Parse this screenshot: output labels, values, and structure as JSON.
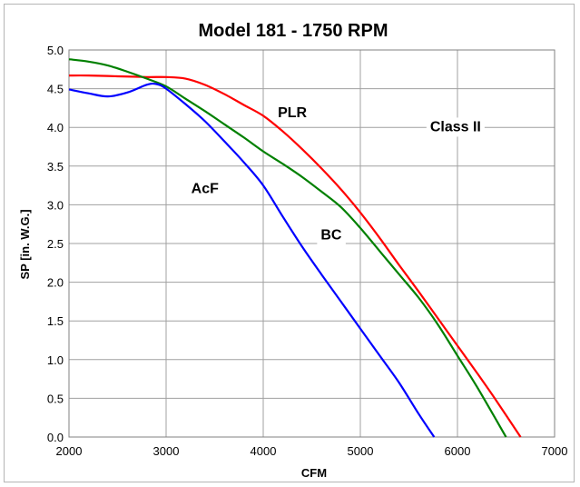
{
  "chart_data": {
    "type": "line",
    "title": "Model 181 - 1750 RPM",
    "xlabel": "CFM",
    "ylabel": "SP [in. W.G.]",
    "xlim": [
      2000,
      7000
    ],
    "ylim": [
      0,
      5
    ],
    "x_ticks": [
      2000,
      3000,
      4000,
      5000,
      6000,
      7000
    ],
    "y_ticks": [
      "0.0",
      "0.5",
      "1.0",
      "1.5",
      "2.0",
      "2.5",
      "3.0",
      "3.5",
      "4.0",
      "4.5",
      "5.0"
    ],
    "grid": true,
    "series": [
      {
        "name": "PLR",
        "color": "#ff0000",
        "points": [
          [
            2000,
            4.67
          ],
          [
            2200,
            4.67
          ],
          [
            2500,
            4.66
          ],
          [
            2800,
            4.65
          ],
          [
            3000,
            4.65
          ],
          [
            3200,
            4.63
          ],
          [
            3400,
            4.55
          ],
          [
            3600,
            4.43
          ],
          [
            3800,
            4.29
          ],
          [
            4000,
            4.15
          ],
          [
            4200,
            3.95
          ],
          [
            4400,
            3.72
          ],
          [
            4600,
            3.47
          ],
          [
            4800,
            3.2
          ],
          [
            5000,
            2.9
          ],
          [
            5200,
            2.57
          ],
          [
            5400,
            2.22
          ],
          [
            5600,
            1.88
          ],
          [
            5800,
            1.53
          ],
          [
            6000,
            1.18
          ],
          [
            6200,
            0.83
          ],
          [
            6400,
            0.47
          ],
          [
            6650,
            0.0
          ]
        ]
      },
      {
        "name": "BC",
        "color": "#008000",
        "points": [
          [
            2000,
            4.88
          ],
          [
            2200,
            4.85
          ],
          [
            2400,
            4.8
          ],
          [
            2600,
            4.72
          ],
          [
            2800,
            4.63
          ],
          [
            3000,
            4.53
          ],
          [
            3200,
            4.37
          ],
          [
            3400,
            4.21
          ],
          [
            3600,
            4.04
          ],
          [
            3800,
            3.87
          ],
          [
            4000,
            3.69
          ],
          [
            4200,
            3.53
          ],
          [
            4400,
            3.36
          ],
          [
            4600,
            3.17
          ],
          [
            4800,
            2.97
          ],
          [
            5000,
            2.7
          ],
          [
            5200,
            2.4
          ],
          [
            5400,
            2.1
          ],
          [
            5600,
            1.8
          ],
          [
            5800,
            1.45
          ],
          [
            6000,
            1.05
          ],
          [
            6200,
            0.65
          ],
          [
            6500,
            0.0
          ]
        ]
      },
      {
        "name": "AcF",
        "color": "#0000ff",
        "points": [
          [
            2000,
            4.49
          ],
          [
            2200,
            4.44
          ],
          [
            2400,
            4.4
          ],
          [
            2600,
            4.45
          ],
          [
            2800,
            4.55
          ],
          [
            2900,
            4.56
          ],
          [
            3000,
            4.5
          ],
          [
            3200,
            4.3
          ],
          [
            3400,
            4.08
          ],
          [
            3600,
            3.82
          ],
          [
            3800,
            3.55
          ],
          [
            4000,
            3.25
          ],
          [
            4200,
            2.85
          ],
          [
            4400,
            2.46
          ],
          [
            4600,
            2.1
          ],
          [
            4800,
            1.75
          ],
          [
            5000,
            1.4
          ],
          [
            5200,
            1.05
          ],
          [
            5400,
            0.7
          ],
          [
            5600,
            0.3
          ],
          [
            5760,
            0.0
          ]
        ]
      }
    ],
    "annotations": [
      {
        "text": "PLR",
        "x": 4300,
        "y": 4.18
      },
      {
        "text": "AcF",
        "x": 3400,
        "y": 3.2
      },
      {
        "text": "BC",
        "x": 4700,
        "y": 2.6
      },
      {
        "text": "Class II",
        "x": 5980,
        "y": 4.0
      }
    ]
  }
}
